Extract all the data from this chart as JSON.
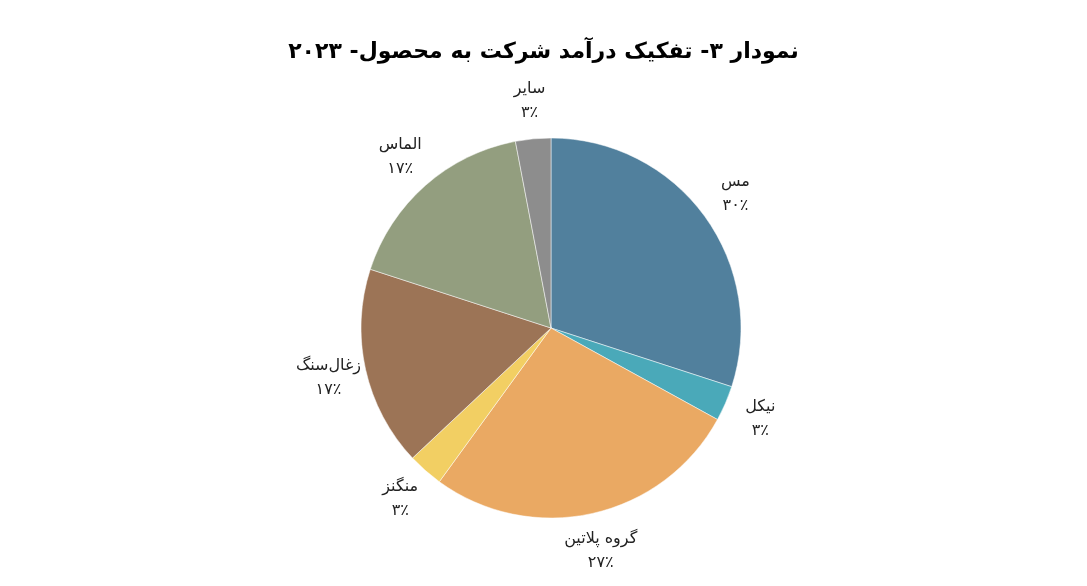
{
  "chart_data": {
    "type": "pie",
    "title": "نمودار ۳- تفکیک درآمد شرکت به محصول- ۲۰۲۳",
    "categories": [
      "مس",
      "نیکل",
      "گروه پلاتین",
      "منگنز",
      "زغال‌سنگ",
      "الماس",
      "سایر"
    ],
    "values": [
      30,
      3,
      27,
      3,
      17,
      17,
      3
    ],
    "colors": [
      "#51809d",
      "#4aa9b9",
      "#eaa963",
      "#f2cf63",
      "#9c7456",
      "#939e7f",
      "#8d8d8d"
    ],
    "value_labels": [
      "۳۰٪",
      "۳٪",
      "۲۷٪",
      "۳٪",
      "۱۷٪",
      "۱۷٪",
      "۳٪"
    ],
    "legend": false
  }
}
